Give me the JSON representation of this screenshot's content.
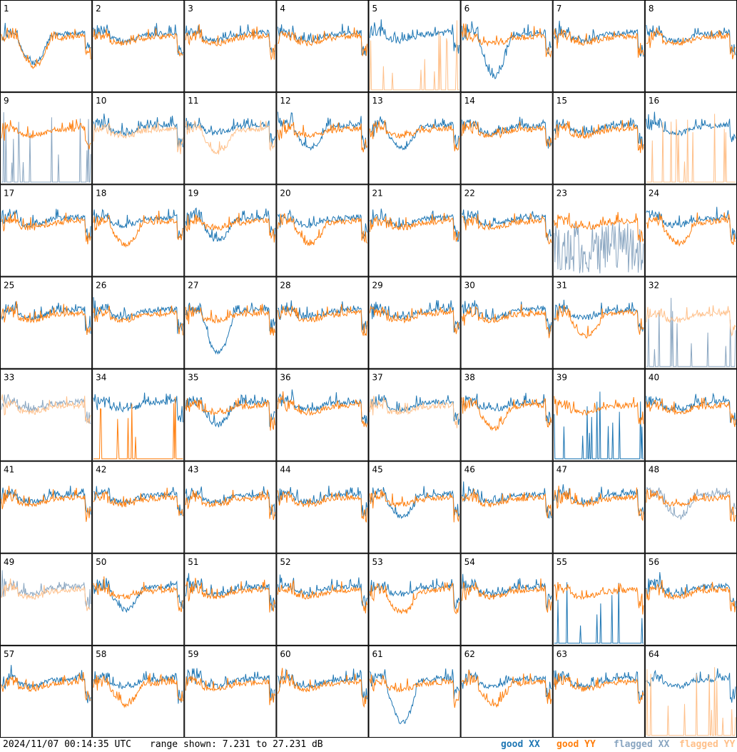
{
  "footer": {
    "timestamp": "2024/11/07 00:14:35 UTC",
    "range_text": "range shown: 7.231 to 27.231 dB",
    "legend": {
      "good_xx": "good XX",
      "good_yy": "good YY",
      "flagged_xx": "flagged XX",
      "flagged_yy": "flagged YY"
    }
  },
  "colors": {
    "good_xx": "#1f77b4",
    "good_yy": "#ff7f0e",
    "flagged_xx": "#8aa6c1",
    "flagged_yy": "#ffc08a"
  },
  "chart_data": {
    "type": "line",
    "grid": {
      "rows": 8,
      "cols": 8
    },
    "ylim": [
      7.231,
      27.231
    ],
    "yunit": "dB",
    "note_series": [
      "XX",
      "YY"
    ],
    "tiles": [
      {
        "label": "1",
        "xx": "good",
        "yy": "good",
        "profile": "dip-early"
      },
      {
        "label": "2",
        "xx": "good",
        "yy": "good",
        "profile": "flat"
      },
      {
        "label": "3",
        "xx": "good",
        "yy": "good",
        "profile": "flat"
      },
      {
        "label": "4",
        "xx": "good",
        "yy": "good",
        "profile": "flat"
      },
      {
        "label": "5",
        "xx": "good",
        "yy": "flagged",
        "profile": "yy-spikes"
      },
      {
        "label": "6",
        "xx": "good",
        "yy": "good",
        "profile": "xx-deep-dip"
      },
      {
        "label": "7",
        "xx": "good",
        "yy": "good",
        "profile": "flat"
      },
      {
        "label": "8",
        "xx": "good",
        "yy": "good",
        "profile": "flat"
      },
      {
        "label": "9",
        "xx": "flagged",
        "yy": "good",
        "profile": "xx-spikes"
      },
      {
        "label": "10",
        "xx": "good",
        "yy": "flagged",
        "profile": "flat"
      },
      {
        "label": "11",
        "xx": "good",
        "yy": "flagged",
        "profile": "yy-low"
      },
      {
        "label": "12",
        "xx": "good",
        "yy": "good",
        "profile": "xx-sag"
      },
      {
        "label": "13",
        "xx": "good",
        "yy": "good",
        "profile": "xx-sag"
      },
      {
        "label": "14",
        "xx": "good",
        "yy": "good",
        "profile": "flat"
      },
      {
        "label": "15",
        "xx": "good",
        "yy": "good",
        "profile": "flat"
      },
      {
        "label": "16",
        "xx": "good",
        "yy": "flagged",
        "profile": "yy-spikes"
      },
      {
        "label": "17",
        "xx": "good",
        "yy": "good",
        "profile": "flat"
      },
      {
        "label": "18",
        "xx": "good",
        "yy": "good",
        "profile": "yy-low"
      },
      {
        "label": "19",
        "xx": "good",
        "yy": "good",
        "profile": "xx-sag"
      },
      {
        "label": "20",
        "xx": "good",
        "yy": "good",
        "profile": "yy-low"
      },
      {
        "label": "21",
        "xx": "good",
        "yy": "good",
        "profile": "flat"
      },
      {
        "label": "22",
        "xx": "good",
        "yy": "good",
        "profile": "flat"
      },
      {
        "label": "23",
        "xx": "flagged",
        "yy": "good",
        "profile": "xx-noisy"
      },
      {
        "label": "24",
        "xx": "good",
        "yy": "good",
        "profile": "yy-low"
      },
      {
        "label": "25",
        "xx": "good",
        "yy": "good",
        "profile": "flat"
      },
      {
        "label": "26",
        "xx": "good",
        "yy": "good",
        "profile": "flat"
      },
      {
        "label": "27",
        "xx": "good",
        "yy": "good",
        "profile": "xx-deep-dip"
      },
      {
        "label": "28",
        "xx": "good",
        "yy": "good",
        "profile": "flat"
      },
      {
        "label": "29",
        "xx": "good",
        "yy": "good",
        "profile": "flat"
      },
      {
        "label": "30",
        "xx": "good",
        "yy": "good",
        "profile": "flat"
      },
      {
        "label": "31",
        "xx": "good",
        "yy": "good",
        "profile": "yy-low"
      },
      {
        "label": "32",
        "xx": "flagged",
        "yy": "flagged",
        "profile": "yy-only"
      },
      {
        "label": "33",
        "xx": "flagged",
        "yy": "flagged",
        "profile": "flat"
      },
      {
        "label": "34",
        "xx": "good",
        "yy": "good",
        "profile": "yy-spikes"
      },
      {
        "label": "35",
        "xx": "good",
        "yy": "good",
        "profile": "xx-sag"
      },
      {
        "label": "36",
        "xx": "good",
        "yy": "good",
        "profile": "flat"
      },
      {
        "label": "37",
        "xx": "good",
        "yy": "flagged",
        "profile": "flat"
      },
      {
        "label": "38",
        "xx": "good",
        "yy": "good",
        "profile": "yy-low"
      },
      {
        "label": "39",
        "xx": "good",
        "yy": "good",
        "profile": "yy-only"
      },
      {
        "label": "40",
        "xx": "good",
        "yy": "good",
        "profile": "flat"
      },
      {
        "label": "41",
        "xx": "good",
        "yy": "good",
        "profile": "flat"
      },
      {
        "label": "42",
        "xx": "good",
        "yy": "good",
        "profile": "flat"
      },
      {
        "label": "43",
        "xx": "good",
        "yy": "good",
        "profile": "flat"
      },
      {
        "label": "44",
        "xx": "good",
        "yy": "good",
        "profile": "flat"
      },
      {
        "label": "45",
        "xx": "good",
        "yy": "good",
        "profile": "xx-sag"
      },
      {
        "label": "46",
        "xx": "good",
        "yy": "good",
        "profile": "flat"
      },
      {
        "label": "47",
        "xx": "good",
        "yy": "good",
        "profile": "flat"
      },
      {
        "label": "48",
        "xx": "flagged",
        "yy": "good",
        "profile": "xx-sag"
      },
      {
        "label": "49",
        "xx": "flagged",
        "yy": "flagged",
        "profile": "flat"
      },
      {
        "label": "50",
        "xx": "good",
        "yy": "good",
        "profile": "xx-sag"
      },
      {
        "label": "51",
        "xx": "good",
        "yy": "good",
        "profile": "flat"
      },
      {
        "label": "52",
        "xx": "good",
        "yy": "good",
        "profile": "flat"
      },
      {
        "label": "53",
        "xx": "good",
        "yy": "good",
        "profile": "yy-low"
      },
      {
        "label": "54",
        "xx": "good",
        "yy": "good",
        "profile": "flat"
      },
      {
        "label": "55",
        "xx": "good",
        "yy": "good",
        "profile": "yy-only"
      },
      {
        "label": "56",
        "xx": "good",
        "yy": "good",
        "profile": "flat"
      },
      {
        "label": "57",
        "xx": "good",
        "yy": "good",
        "profile": "flat"
      },
      {
        "label": "58",
        "xx": "good",
        "yy": "good",
        "profile": "yy-low"
      },
      {
        "label": "59",
        "xx": "good",
        "yy": "good",
        "profile": "flat"
      },
      {
        "label": "60",
        "xx": "good",
        "yy": "good",
        "profile": "flat"
      },
      {
        "label": "61",
        "xx": "good",
        "yy": "good",
        "profile": "xx-deep-dip"
      },
      {
        "label": "62",
        "xx": "good",
        "yy": "good",
        "profile": "yy-low"
      },
      {
        "label": "63",
        "xx": "good",
        "yy": "good",
        "profile": "flat"
      },
      {
        "label": "64",
        "xx": "good",
        "yy": "flagged",
        "profile": "yy-spikes"
      }
    ]
  }
}
